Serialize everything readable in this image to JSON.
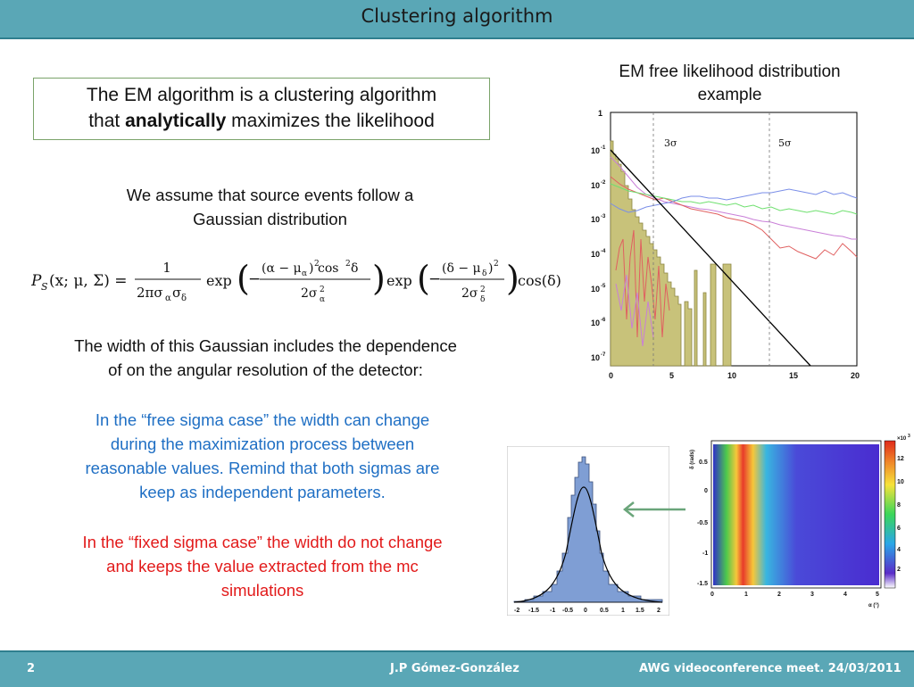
{
  "header": {
    "title": "Clustering algorithm"
  },
  "box": {
    "line1": "The EM algorithm is a clustering algorithm",
    "line2_pre": "that ",
    "line2_bold": "analytically",
    "line2_post": " maximizes the likelihood"
  },
  "assume": {
    "line1": "We assume that source events follow a",
    "line2": "Gaussian distribution"
  },
  "width_text": {
    "line1": "The width of this Gaussian includes the dependence",
    "line2": "of on the angular resolution of the detector:"
  },
  "free": {
    "line1": "In the “free sigma case” the width can change",
    "line2": "during the maximization process between",
    "line3": "reasonable values. Remind that both sigmas are",
    "line4": "keep as independent parameters."
  },
  "fixed": {
    "line1": "In the “fixed sigma case” the width do not change",
    "line2": "and keeps the value extracted from the mc",
    "line3": "simulations"
  },
  "formula": {
    "lhs": "P",
    "lhs_sub": "S",
    "args": "(x; μ, Σ) =",
    "frac1_num": "1",
    "frac1_den": "2πσ",
    "frac1_den_a": "α",
    "frac1_den_b": "σ",
    "frac1_den_c": "δ",
    "exp1": "exp",
    "frac2_num_a": "(α − μ",
    "frac2_num_sub": "α",
    "frac2_num_b": ")",
    "frac2_num_sup": "2",
    "frac2_num_c": " cos",
    "frac2_num_sup2": "2",
    "frac2_num_d": " δ",
    "frac2_den": "2σ",
    "frac2_den_sup": "2",
    "frac2_den_sub": "α",
    "exp2": "exp",
    "frac3_num_a": "(δ − μ",
    "frac3_num_sub": "δ",
    "frac3_num_b": ")",
    "frac3_num_sup": "2",
    "frac3_den": "2σ",
    "frac3_den_sup": "2",
    "frac3_den_sub": "δ",
    "cos": "cos(δ)",
    "minus": "−"
  },
  "plot": {
    "title_line1": "EM free likelihood distribution",
    "title_line2": "example",
    "y_ticks": [
      "1",
      "10",
      "10",
      "10",
      "10",
      "10",
      "10",
      "10"
    ],
    "y_exps": [
      "",
      "-1",
      "-2",
      "-3",
      "-4",
      "-5",
      "-6",
      "-7"
    ],
    "x_ticks": [
      "0",
      "5",
      "10",
      "15",
      "20"
    ],
    "label_3s": "3σ",
    "label_5s": "5σ"
  },
  "hist_plot": {
    "x_ticks": [
      "-2",
      "-1.5",
      "-1",
      "-0.5",
      "0",
      "0.5",
      "1",
      "1.5",
      "2"
    ]
  },
  "heat_plot": {
    "y_label": "δ (rads)",
    "x_label": "α (°)",
    "y_ticks": [
      "0.5",
      "0",
      "-0.5",
      "-1",
      "-1.5"
    ],
    "x_ticks": [
      "0",
      "1",
      "2",
      "3",
      "4",
      "5"
    ],
    "scale_mult": "×10",
    "scale_exp": "3",
    "scale_ticks": [
      "12",
      "10",
      "8",
      "6",
      "4",
      "2"
    ]
  },
  "footer": {
    "page": "2",
    "author": "J.P Gómez-González",
    "event": "AWG videoconference meet. 24/03/2011"
  },
  "colors": {
    "bar": "#5aa7b6",
    "border": "#2f7f8f",
    "blue_text": "#1f6fc4",
    "red_text": "#e21a1a",
    "box_border": "#7aa36a",
    "arrow": "#6aa57a",
    "hist_fill": "#7f9ed4",
    "em_fill": "#c8c27a"
  }
}
